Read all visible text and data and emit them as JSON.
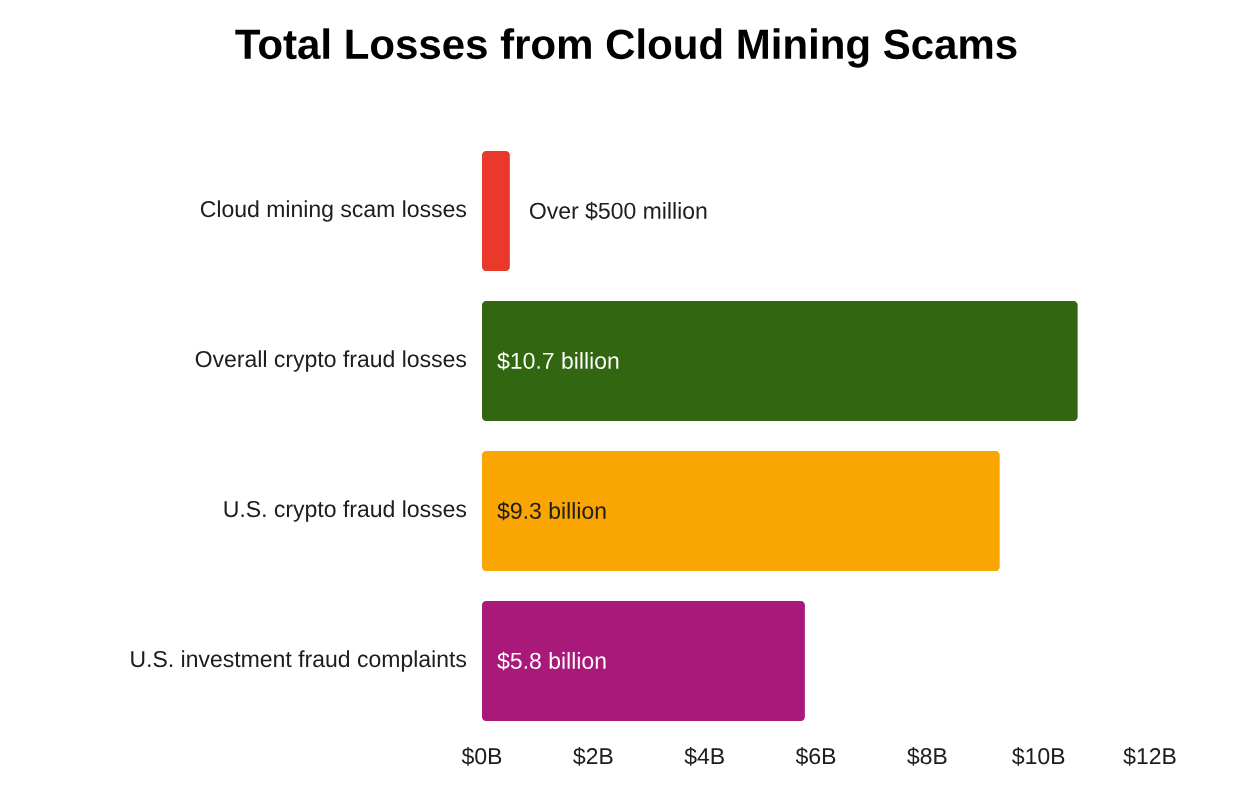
{
  "chart_data": {
    "type": "bar",
    "orientation": "horizontal",
    "title": "Total Losses from Cloud Mining Scams",
    "categories": [
      "Cloud mining scam losses",
      "Overall crypto fraud losses",
      "U.S. crypto fraud losses",
      "U.S. investment fraud complaints"
    ],
    "values": [
      0.5,
      10.7,
      9.3,
      5.8
    ],
    "colors": [
      "#e8392a",
      "#336611",
      "#f9a602",
      "#a8197a"
    ],
    "value_labels": [
      "Over $500 million",
      "$10.7 billion",
      "$9.3 billion",
      "$5.8 billion"
    ],
    "xlim": [
      0,
      12
    ],
    "xticks": [
      {
        "value": 0,
        "label": "$0B"
      },
      {
        "value": 2,
        "label": "$2B"
      },
      {
        "value": 4,
        "label": "$4B"
      },
      {
        "value": 6,
        "label": "$6B"
      },
      {
        "value": 8,
        "label": "$8B"
      },
      {
        "value": 10,
        "label": "$10B"
      },
      {
        "value": 12,
        "label": "$12B"
      }
    ]
  }
}
